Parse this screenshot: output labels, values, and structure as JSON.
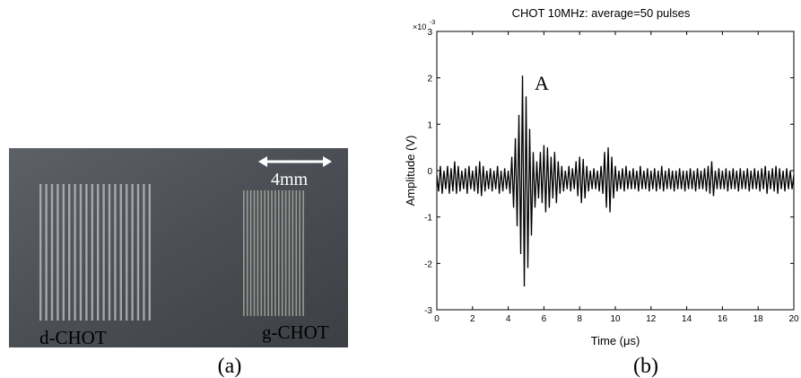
{
  "panel_a": {
    "scale_label": "4mm",
    "left_label": "d-CHOT",
    "right_label": "g-CHOT",
    "caption": "(a)"
  },
  "chart_data": {
    "type": "line",
    "title": "CHOT 10MHz: average=50 pulses",
    "xlabel": "Time (μs)",
    "ylabel": "Amplitude (V)",
    "y_multiplier": {
      "base": "×10",
      "exponent": "-3"
    },
    "annotation": "A",
    "caption": "(b)",
    "color": "#000000",
    "xlim": [
      0,
      20
    ],
    "ylim": [
      -3,
      3
    ],
    "xticks": [
      0,
      2,
      4,
      6,
      8,
      10,
      12,
      14,
      16,
      18,
      20
    ],
    "yticks": [
      -3,
      -2,
      -1,
      0,
      1,
      2,
      3
    ],
    "x": [
      0,
      0.1,
      0.2,
      0.3,
      0.4,
      0.5,
      0.6,
      0.7,
      0.8,
      0.9,
      1,
      1.1,
      1.2,
      1.3,
      1.4,
      1.5,
      1.6,
      1.7,
      1.8,
      1.9,
      2,
      2.1,
      2.2,
      2.3,
      2.4,
      2.5,
      2.6,
      2.7,
      2.8,
      2.9,
      3,
      3.1,
      3.2,
      3.3,
      3.4,
      3.5,
      3.6,
      3.7,
      3.8,
      3.9,
      4,
      4.1,
      4.2,
      4.3,
      4.4,
      4.5,
      4.6,
      4.7,
      4.8,
      4.9,
      5,
      5.1,
      5.2,
      5.3,
      5.4,
      5.5,
      5.6,
      5.7,
      5.8,
      5.9,
      6,
      6.1,
      6.2,
      6.3,
      6.4,
      6.5,
      6.6,
      6.7,
      6.8,
      6.9,
      7,
      7.1,
      7.2,
      7.3,
      7.4,
      7.5,
      7.6,
      7.7,
      7.8,
      7.9,
      8,
      8.1,
      8.2,
      8.3,
      8.4,
      8.5,
      8.6,
      8.7,
      8.8,
      8.9,
      9,
      9.1,
      9.2,
      9.3,
      9.4,
      9.5,
      9.6,
      9.7,
      9.8,
      9.9,
      10,
      10.1,
      10.2,
      10.3,
      10.4,
      10.5,
      10.6,
      10.7,
      10.8,
      10.9,
      11,
      11.1,
      11.2,
      11.3,
      11.4,
      11.5,
      11.6,
      11.7,
      11.8,
      11.9,
      12,
      12.1,
      12.2,
      12.3,
      12.4,
      12.5,
      12.6,
      12.7,
      12.8,
      12.9,
      13,
      13.1,
      13.2,
      13.3,
      13.4,
      13.5,
      13.6,
      13.7,
      13.8,
      13.9,
      14,
      14.1,
      14.2,
      14.3,
      14.4,
      14.5,
      14.6,
      14.7,
      14.8,
      14.9,
      15,
      15.1,
      15.2,
      15.3,
      15.4,
      15.5,
      15.6,
      15.7,
      15.8,
      15.9,
      16,
      16.1,
      16.2,
      16.3,
      16.4,
      16.5,
      16.6,
      16.7,
      16.8,
      16.9,
      17,
      17.1,
      17.2,
      17.3,
      17.4,
      17.5,
      17.6,
      17.7,
      17.8,
      17.9,
      18,
      18.1,
      18.2,
      18.3,
      18.4,
      18.5,
      18.6,
      18.7,
      18.8,
      18.9,
      19,
      19.1,
      19.2,
      19.3,
      19.4,
      19.5,
      19.6,
      19.7,
      19.8,
      19.9,
      20
    ],
    "values": [
      -0.1,
      -0.45,
      0.1,
      -0.5,
      0.0,
      -0.4,
      0.1,
      -0.5,
      0.05,
      -0.45,
      0.2,
      -0.5,
      0.1,
      -0.45,
      0.0,
      -0.4,
      0.05,
      -0.5,
      0.1,
      -0.4,
      0.0,
      -0.45,
      0.1,
      -0.5,
      0.2,
      -0.55,
      0.1,
      -0.45,
      0.0,
      -0.4,
      0.05,
      -0.45,
      0.0,
      -0.4,
      0.1,
      -0.5,
      0.0,
      -0.45,
      0.05,
      -0.4,
      0.0,
      -0.5,
      0.3,
      -0.8,
      0.7,
      -1.2,
      1.2,
      -1.8,
      2.05,
      -2.5,
      1.6,
      -2.1,
      0.9,
      -1.4,
      0.4,
      -0.8,
      0.2,
      -0.6,
      0.4,
      -0.7,
      0.55,
      -0.9,
      0.5,
      -0.8,
      0.3,
      -0.6,
      0.4,
      -0.7,
      0.2,
      -0.5,
      0.1,
      -0.45,
      0.0,
      -0.4,
      0.1,
      -0.45,
      0.05,
      -0.4,
      0.2,
      -0.55,
      0.3,
      -0.7,
      0.25,
      -0.6,
      0.1,
      -0.45,
      0.0,
      -0.4,
      0.05,
      -0.4,
      0.0,
      -0.45,
      0.1,
      -0.5,
      0.4,
      -0.8,
      0.5,
      -0.9,
      0.3,
      -0.6,
      0.1,
      -0.45,
      0.0,
      -0.4,
      0.05,
      -0.45,
      0.1,
      -0.4,
      0.0,
      -0.4,
      0.05,
      -0.4,
      0.0,
      -0.45,
      0.1,
      -0.4,
      0.0,
      -0.4,
      0.05,
      -0.45,
      0.0,
      -0.4,
      0.05,
      -0.45,
      0.0,
      -0.4,
      0.1,
      -0.45,
      0.0,
      -0.4,
      0.05,
      -0.4,
      0.0,
      -0.45,
      0.0,
      -0.4,
      0.05,
      -0.4,
      0.0,
      -0.45,
      0.0,
      -0.4,
      0.05,
      -0.4,
      0.0,
      -0.45,
      0.05,
      -0.4,
      0.0,
      -0.4,
      0.05,
      -0.45,
      0.1,
      -0.5,
      0.2,
      -0.55,
      0.0,
      -0.4,
      0.05,
      -0.4,
      0.0,
      -0.4,
      0.05,
      -0.45,
      0.0,
      -0.4,
      0.05,
      -0.4,
      0.0,
      -0.45,
      0.05,
      -0.4,
      0.0,
      -0.4,
      0.05,
      -0.45,
      0.0,
      -0.4,
      0.05,
      -0.4,
      0.0,
      -0.45,
      0.05,
      -0.4,
      0.1,
      -0.5,
      0.0,
      -0.4,
      0.05,
      -0.45,
      0.1,
      -0.5,
      0.05,
      -0.4,
      0.0,
      -0.45,
      0.05,
      -0.4,
      0.0,
      -0.4,
      -0.1
    ]
  }
}
